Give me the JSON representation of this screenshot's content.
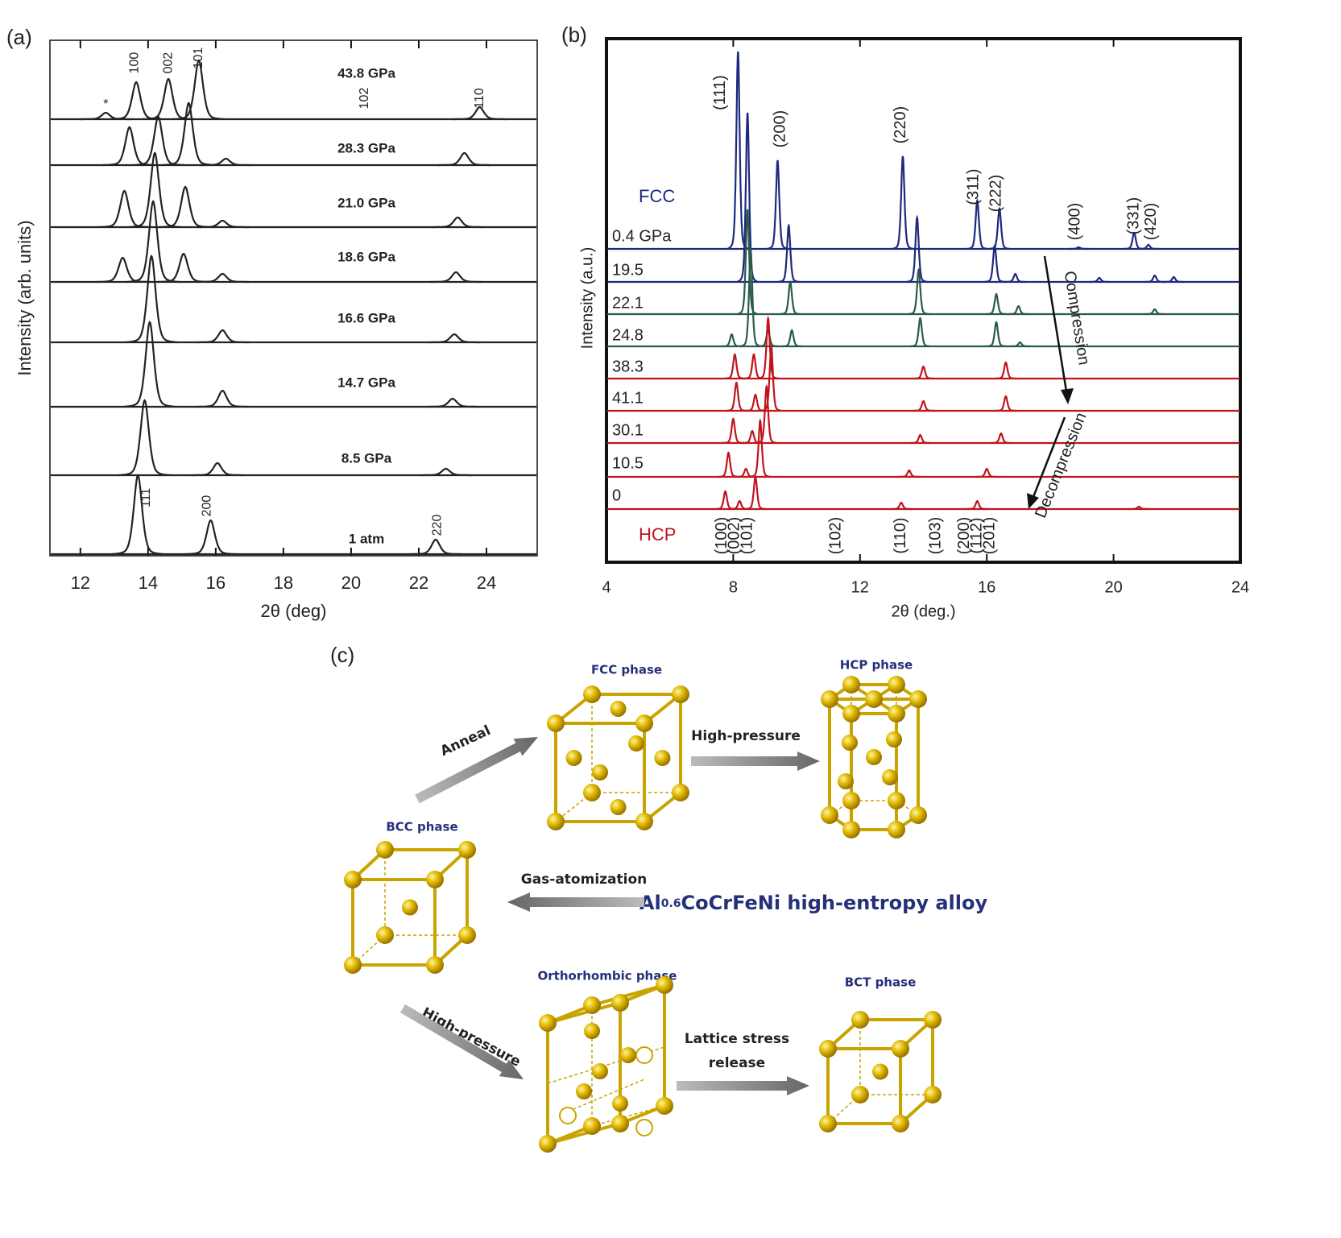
{
  "chart_data": [
    {
      "type": "spectrum",
      "panel_label": "(a)",
      "xlabel": "2θ (deg)",
      "ylabel": "Intensity (arb. units)",
      "xlim": [
        11.1,
        25.5
      ],
      "xticks": [
        12,
        14,
        16,
        18,
        20,
        22,
        24
      ],
      "series": [
        {
          "name": "43.8 GPa",
          "color": "#222222",
          "peaks": [
            12.75,
            13.65,
            14.6,
            15.5,
            23.8
          ],
          "heights": [
            0.08,
            0.46,
            0.5,
            0.73,
            0.15
          ]
        },
        {
          "name": "28.3 GPa",
          "color": "#222222",
          "peaks": [
            13.45,
            14.3,
            15.2,
            16.3,
            23.35
          ],
          "heights": [
            0.47,
            0.6,
            0.77,
            0.08,
            0.15
          ]
        },
        {
          "name": "21.0 GPa",
          "color": "#222222",
          "peaks": [
            13.3,
            14.2,
            15.1,
            16.2,
            23.15
          ],
          "heights": [
            0.45,
            0.92,
            0.5,
            0.08,
            0.12
          ]
        },
        {
          "name": "18.6 GPa",
          "color": "#222222",
          "peaks": [
            13.25,
            14.15,
            15.05,
            16.2,
            23.1
          ],
          "heights": [
            0.3,
            1.0,
            0.35,
            0.1,
            0.12
          ]
        },
        {
          "name": "16.6 GPa",
          "color": "#222222",
          "peaks": [
            14.1,
            16.2,
            23.05
          ],
          "heights": [
            1.07,
            0.15,
            0.1
          ]
        },
        {
          "name": "14.7 GPa",
          "color": "#222222",
          "peaks": [
            14.05,
            16.2,
            23.0
          ],
          "heights": [
            1.05,
            0.2,
            0.1
          ]
        },
        {
          "name": "8.5 GPa",
          "color": "#222222",
          "peaks": [
            13.9,
            16.05,
            22.8
          ],
          "heights": [
            0.93,
            0.15,
            0.08
          ]
        },
        {
          "name": "1 atm",
          "color": "#222222",
          "peaks": [
            13.7,
            15.85,
            22.5
          ],
          "heights": [
            0.98,
            0.42,
            0.18
          ]
        }
      ],
      "peak_labels": [
        {
          "text": "100",
          "x": 13.6
        },
        {
          "text": "002",
          "x": 14.6
        },
        {
          "text": "101",
          "x": 15.5
        },
        {
          "text": "102",
          "x": 20.4
        },
        {
          "text": "110",
          "x": 23.8
        },
        {
          "text": "*",
          "x": 12.75
        },
        {
          "text": "111",
          "x": 13.95
        },
        {
          "text": "200",
          "x": 15.75
        },
        {
          "text": "220",
          "x": 22.55
        }
      ]
    },
    {
      "type": "spectrum",
      "panel_label": "(b)",
      "xlabel": "2θ (deg.)",
      "ylabel": "Intensity (a.u.)",
      "xlim": [
        4,
        24
      ],
      "xticks": [
        4,
        8,
        12,
        16,
        20,
        24
      ],
      "series": [
        {
          "name": "0.4 GPa",
          "color": "#1c2a7c",
          "peaks": [
            8.15,
            9.4,
            13.35,
            15.7,
            16.4,
            18.9,
            20.65,
            21.1
          ],
          "heights": [
            2.45,
            1.1,
            1.15,
            0.6,
            0.5,
            0.02,
            0.2,
            0.05
          ]
        },
        {
          "name": "19.5",
          "color": "#1c2a7c",
          "peaks": [
            8.45,
            9.75,
            13.8,
            16.25,
            16.9,
            19.55,
            21.3,
            21.9
          ],
          "heights": [
            2.1,
            0.7,
            0.8,
            0.45,
            0.1,
            0.05,
            0.08,
            0.06
          ]
        },
        {
          "name": "22.1",
          "color": "#2a5a4c",
          "peaks": [
            8.45,
            9.8,
            13.85,
            16.3,
            17.0,
            21.3
          ],
          "heights": [
            1.3,
            0.4,
            0.55,
            0.25,
            0.1,
            0.06
          ]
        },
        {
          "name": "24.8",
          "color": "#2a5a4c",
          "peaks": [
            7.95,
            8.55,
            9.1,
            9.85,
            13.9,
            16.3,
            17.05
          ],
          "heights": [
            0.15,
            1.2,
            0.2,
            0.2,
            0.35,
            0.3,
            0.05
          ]
        },
        {
          "name": "38.3",
          "color": "#c0141e",
          "peaks": [
            8.05,
            8.65,
            9.1,
            14.0,
            16.6
          ],
          "heights": [
            0.3,
            0.3,
            0.75,
            0.15,
            0.2
          ]
        },
        {
          "name": "41.1",
          "color": "#c0141e",
          "peaks": [
            8.1,
            8.7,
            9.2,
            14.0,
            16.6
          ],
          "heights": [
            0.35,
            0.2,
            0.8,
            0.12,
            0.18
          ]
        },
        {
          "name": "30.1",
          "color": "#c0141e",
          "peaks": [
            8.0,
            8.6,
            9.05,
            13.9,
            16.45
          ],
          "heights": [
            0.3,
            0.15,
            0.7,
            0.1,
            0.12
          ]
        },
        {
          "name": "10.5",
          "color": "#c0141e",
          "peaks": [
            7.85,
            8.4,
            8.85,
            13.55,
            16.0
          ],
          "heights": [
            0.3,
            0.1,
            0.7,
            0.08,
            0.1
          ]
        },
        {
          "name": "0",
          "color": "#c0141e",
          "peaks": [
            7.75,
            8.2,
            8.7,
            13.3,
            15.7,
            20.8
          ],
          "heights": [
            0.22,
            0.1,
            0.4,
            0.08,
            0.1,
            0.03
          ]
        }
      ],
      "peak_labels": [
        {
          "text": "(111)",
          "x": 7.6
        },
        {
          "text": "(200)",
          "x": 9.5
        },
        {
          "text": "(220)",
          "x": 13.3
        },
        {
          "text": "(311)",
          "x": 15.6
        },
        {
          "text": "(222)",
          "x": 16.3
        },
        {
          "text": "(400)",
          "x": 18.8
        },
        {
          "text": "(331)",
          "x": 20.65
        },
        {
          "text": "(420)",
          "x": 21.2
        },
        {
          "text": "(100)",
          "x": 7.65
        },
        {
          "text": "(002)",
          "x": 8.05
        },
        {
          "text": "(101)",
          "x": 8.45
        },
        {
          "text": "(102)",
          "x": 11.25
        },
        {
          "text": "(110)",
          "x": 13.3
        },
        {
          "text": "(103)",
          "x": 14.4
        },
        {
          "text": "(200)",
          "x": 15.3
        },
        {
          "text": "(112)",
          "x": 15.7
        },
        {
          "text": "(201)",
          "x": 16.1
        }
      ],
      "phase_labels": [
        {
          "text": "FCC",
          "color": "#1c2a7c"
        },
        {
          "text": "HCP",
          "color": "#c0141e"
        }
      ],
      "annotations": [
        "Compression",
        "Decompression"
      ]
    }
  ],
  "diagram": {
    "panel_label": "(c)",
    "fcc": "FCC phase",
    "hcp": "HCP phase",
    "bcc": "BCC phase",
    "ortho": "Orthorhombic phase",
    "bct": "BCT phase",
    "anneal": "Anneal",
    "high_pressure_1": "High-pressure",
    "gas": "Gas-atomization",
    "alloy": [
      "Al",
      "0.6",
      "CoCrFeNi high-entropy alloy"
    ],
    "high_pressure_2": "High-pressure",
    "lattice": [
      "Lattice stress",
      "release"
    ]
  }
}
